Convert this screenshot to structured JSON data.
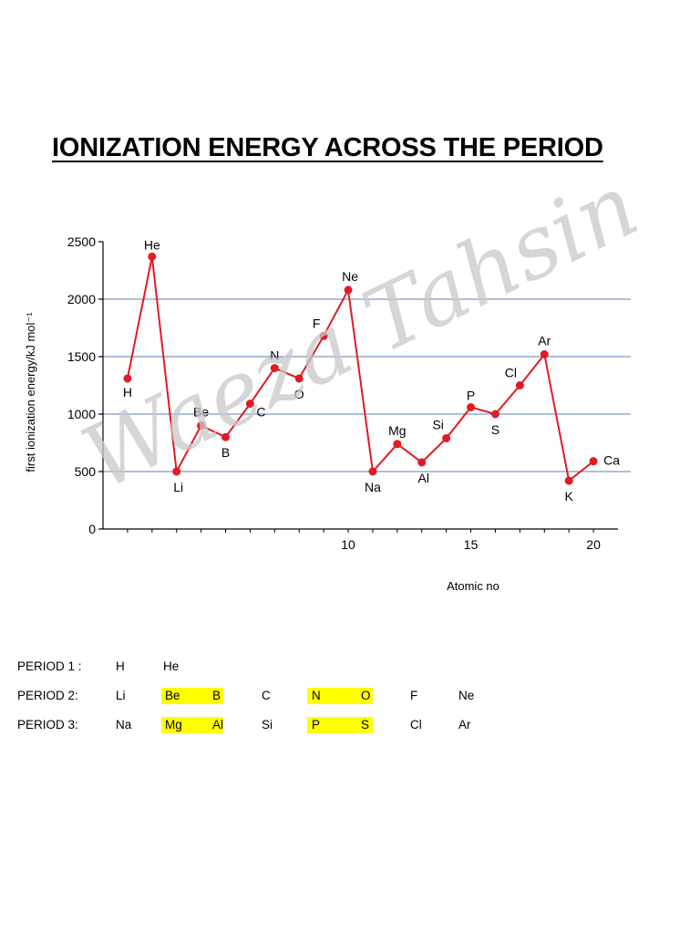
{
  "title": "IONIZATION ENERGY ACROSS THE PERIOD",
  "watermark": "Waeza Tahsin",
  "highlight_color": "#ffff00",
  "chart_data": {
    "type": "line",
    "title": "",
    "xlabel": "Atomic no",
    "ylabel": "first ionization energy/kJ mol⁻¹",
    "xlim": [
      0,
      21
    ],
    "ylim": [
      0,
      2500
    ],
    "xticks": [
      10,
      15,
      20
    ],
    "yticks": [
      0,
      500,
      1000,
      1500,
      2000,
      2500
    ],
    "grid": "horizontal",
    "line_color": "#e01b24",
    "grid_color": "#5b7fb5",
    "series": [
      {
        "x": [
          1,
          2,
          3,
          4,
          5,
          6,
          7,
          8,
          9,
          10,
          11,
          12,
          13,
          14,
          15,
          16,
          17,
          18,
          19,
          20
        ],
        "y": [
          1310,
          2370,
          500,
          900,
          800,
          1090,
          1400,
          1310,
          1680,
          2080,
          500,
          740,
          580,
          790,
          1060,
          1000,
          1250,
          1520,
          420,
          590
        ],
        "labels": [
          "H",
          "He",
          "Li",
          "Be",
          "B",
          "C",
          "N",
          "O",
          "F",
          "Ne",
          "Na",
          "Mg",
          "Al",
          "Si",
          "P",
          "S",
          "Cl",
          "Ar",
          "K",
          "Ca"
        ]
      }
    ]
  },
  "periods": [
    {
      "label": "PERIOD 1 :",
      "elements": [
        "H",
        "He"
      ]
    },
    {
      "label": "PERIOD 2:",
      "elements": [
        "Li",
        "Be",
        "B",
        "C",
        "N",
        "O",
        "F",
        "Ne"
      ]
    },
    {
      "label": "PERIOD 3:",
      "elements": [
        "Na",
        "Mg",
        "Al",
        "Si",
        "P",
        "S",
        "Cl",
        "Ar"
      ]
    }
  ]
}
